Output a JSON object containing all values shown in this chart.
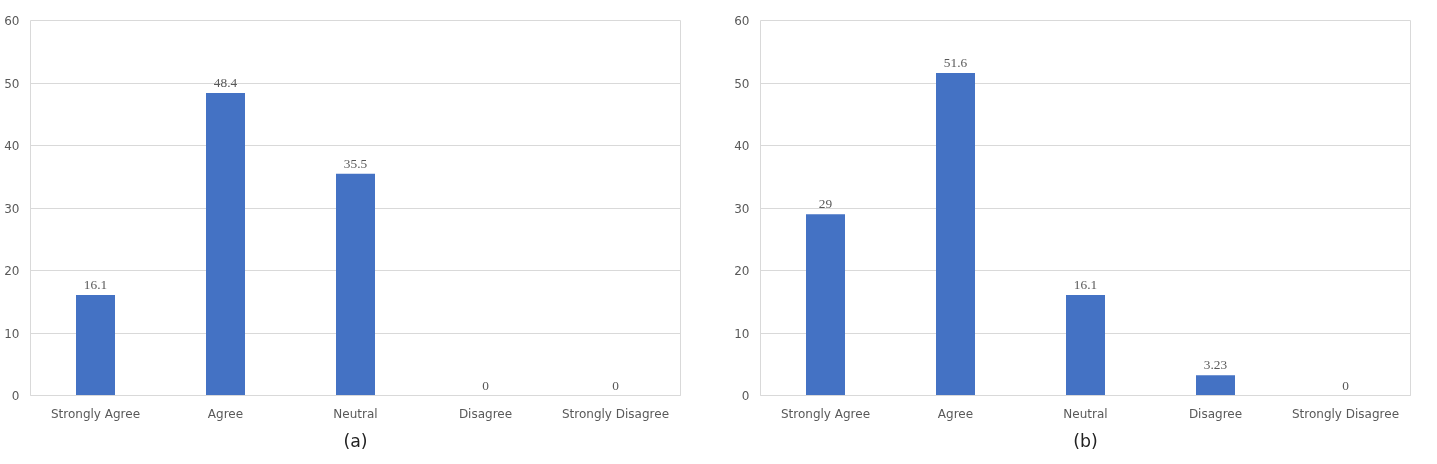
{
  "chart_data": [
    {
      "type": "bar",
      "categories": [
        "Strongly Agree",
        "Agree",
        "Neutral",
        "Disagree",
        "Strongly Disagree"
      ],
      "values": [
        16.1,
        48.4,
        35.5,
        0,
        0
      ],
      "color": "#4472c4",
      "ylim": [
        0,
        60
      ],
      "yticks": [
        0,
        10,
        20,
        30,
        40,
        50,
        60
      ],
      "grid": "y",
      "data_labels": true,
      "annotations": [
        "(a)"
      ]
    },
    {
      "type": "bar",
      "categories": [
        "Strongly Agree",
        "Agree",
        "Neutral",
        "Disagree",
        "Strongly Disagree"
      ],
      "values": [
        29,
        51.6,
        16.1,
        3.23,
        0
      ],
      "color": "#4472c4",
      "ylim": [
        0,
        60
      ],
      "yticks": [
        0,
        10,
        20,
        30,
        40,
        50,
        60
      ],
      "grid": "y",
      "data_labels": true,
      "annotations": [
        "(b)"
      ]
    }
  ]
}
